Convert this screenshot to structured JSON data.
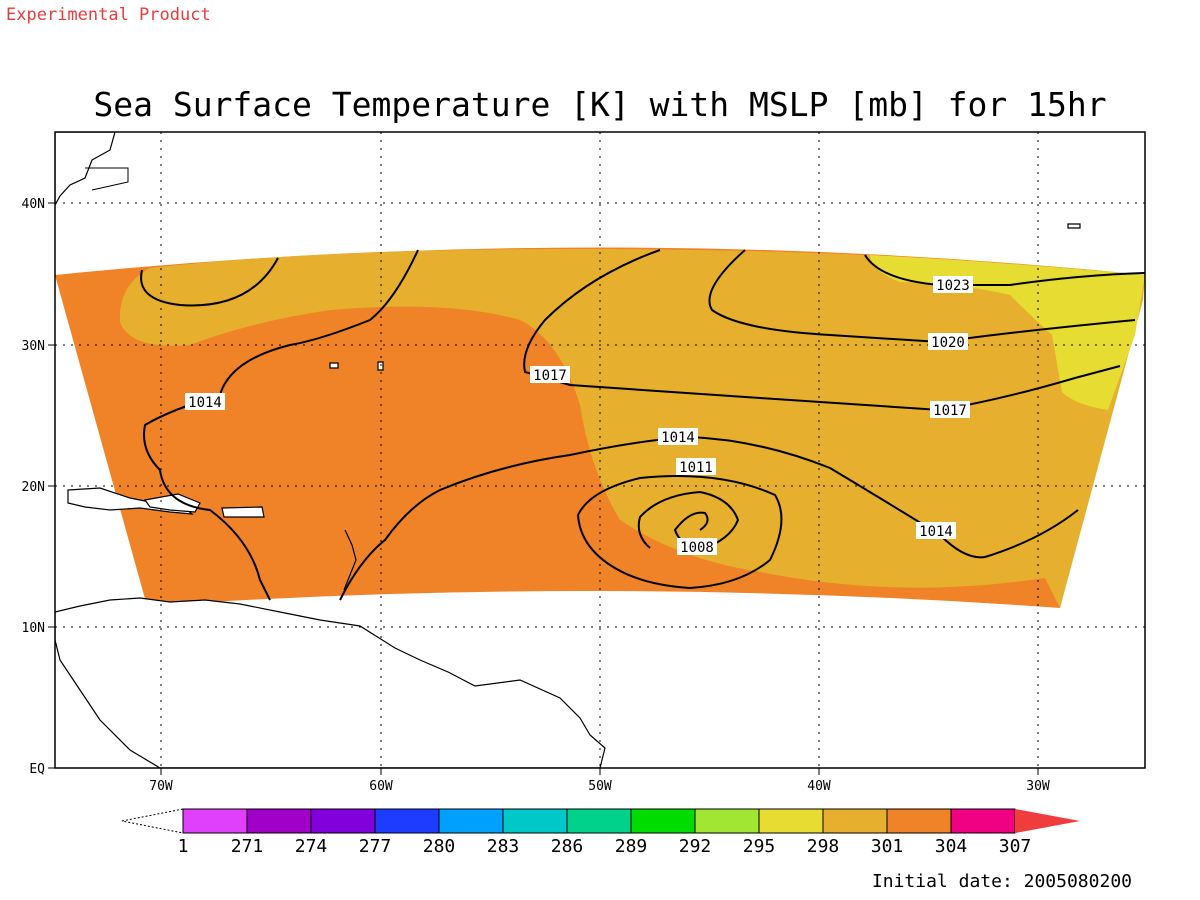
{
  "header": {
    "experimental": "Experimental Product",
    "title": "Sea Surface Temperature [K] with MSLP [mb] for 15hr"
  },
  "axes": {
    "lat_labels": [
      "40N",
      "30N",
      "20N",
      "10N",
      "EQ"
    ],
    "lon_labels": [
      "70W",
      "60W",
      "50W",
      "40W",
      "30W"
    ]
  },
  "contours": {
    "labels": [
      "1014",
      "1017",
      "1014",
      "1011",
      "1008",
      "1014",
      "1017",
      "1020",
      "1023"
    ]
  },
  "colorbar": {
    "labels": [
      "1",
      "271",
      "274",
      "277",
      "280",
      "283",
      "286",
      "289",
      "292",
      "295",
      "298",
      "301",
      "304",
      "307"
    ],
    "colors": [
      "#e040fb",
      "#a000c8",
      "#8200dc",
      "#1e3cff",
      "#00a0ff",
      "#00c8c8",
      "#00d28c",
      "#00dc00",
      "#a0e632",
      "#e6dc32",
      "#e6af2d",
      "#f08228",
      "#f00082",
      "#f03c3c"
    ]
  },
  "footer": {
    "initial_date": "Initial date: 2005080200"
  },
  "palette": {
    "orange": "#f08228",
    "goldenrod": "#e6af2d",
    "yellow": "#e6dc32",
    "experimental_text": "#e83c3c"
  }
}
